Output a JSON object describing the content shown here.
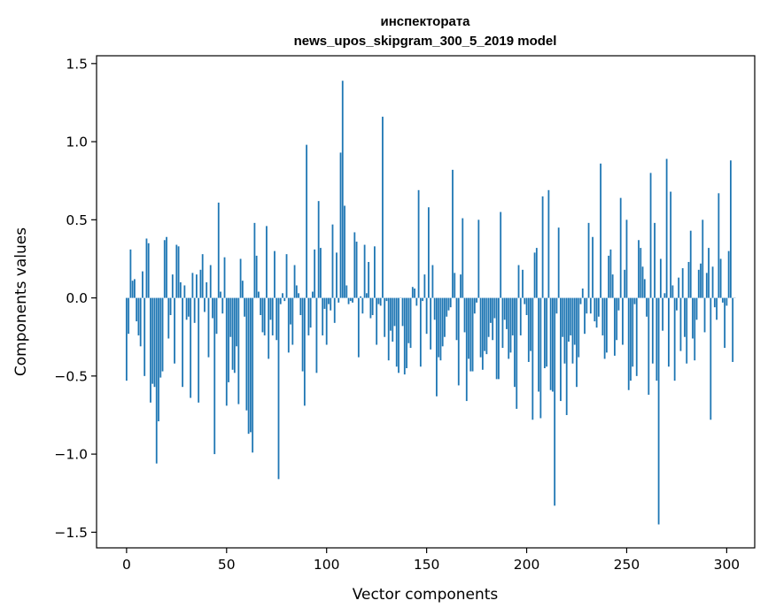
{
  "chart_data": {
    "type": "bar",
    "title": "инспектората",
    "subtitle": "news_upos_skipgram_300_5_2019 model",
    "xlabel": "Vector components",
    "ylabel": "Components values",
    "xlim": [
      -15,
      314
    ],
    "ylim": [
      -1.6,
      1.55
    ],
    "x_ticks": [
      0,
      50,
      100,
      150,
      200,
      250,
      300
    ],
    "y_ticks": [
      -1.5,
      -1.0,
      -0.5,
      0.0,
      0.5,
      1.0,
      1.5
    ],
    "x_tick_labels": [
      "0",
      "50",
      "100",
      "150",
      "200",
      "250",
      "300"
    ],
    "y_tick_labels": [
      "−1.5",
      "−1.0",
      "−0.5",
      "0.0",
      "0.5",
      "1.0",
      "1.5"
    ],
    "bar_color": "#1f77b4",
    "grid": false,
    "values": [
      -0.53,
      -0.23,
      0.31,
      0.11,
      0.12,
      -0.15,
      -0.24,
      -0.31,
      0.17,
      -0.5,
      0.38,
      0.35,
      -0.67,
      -0.55,
      -0.57,
      -1.06,
      -0.79,
      -0.51,
      -0.47,
      0.37,
      0.39,
      -0.26,
      -0.11,
      0.15,
      -0.42,
      0.34,
      0.33,
      0.1,
      -0.57,
      0.08,
      -0.14,
      -0.12,
      -0.64,
      0.16,
      -0.16,
      0.15,
      -0.67,
      0.18,
      0.28,
      -0.09,
      0.1,
      -0.38,
      0.21,
      -0.13,
      -1.0,
      -0.23,
      0.61,
      0.04,
      -0.1,
      0.26,
      -0.69,
      -0.54,
      -0.25,
      -0.46,
      -0.48,
      -0.31,
      -0.68,
      0.25,
      0.11,
      -0.12,
      -0.72,
      -0.87,
      -0.86,
      -0.99,
      0.48,
      0.27,
      0.04,
      -0.11,
      -0.22,
      -0.24,
      0.46,
      -0.39,
      -0.14,
      -0.24,
      0.3,
      -0.27,
      -1.16,
      -0.04,
      0.03,
      -0.02,
      0.28,
      -0.35,
      -0.17,
      -0.3,
      0.21,
      0.08,
      0.03,
      -0.11,
      -0.47,
      -0.69,
      0.98,
      -0.24,
      -0.19,
      0.04,
      0.31,
      -0.48,
      0.62,
      0.32,
      -0.24,
      -0.07,
      -0.3,
      -0.04,
      -0.08,
      0.47,
      -0.16,
      0.29,
      -0.03,
      0.93,
      1.39,
      0.59,
      0.08,
      -0.04,
      -0.02,
      -0.03,
      0.42,
      0.36,
      -0.38,
      0.01,
      -0.1,
      0.34,
      0.03,
      0.23,
      -0.13,
      -0.11,
      0.33,
      -0.3,
      -0.04,
      -0.05,
      1.16,
      -0.25,
      -0.02,
      -0.4,
      -0.21,
      -0.28,
      -0.18,
      -0.44,
      -0.48,
      0.0,
      -0.18,
      -0.49,
      -0.45,
      -0.29,
      -0.32,
      0.07,
      0.06,
      -0.05,
      0.69,
      -0.44,
      -0.02,
      0.15,
      -0.23,
      0.58,
      -0.33,
      0.21,
      -0.14,
      -0.63,
      -0.38,
      -0.4,
      -0.31,
      -0.25,
      -0.12,
      -0.08,
      -0.06,
      0.82,
      0.16,
      -0.27,
      -0.56,
      0.15,
      0.51,
      -0.22,
      -0.66,
      -0.39,
      -0.47,
      -0.47,
      -0.1,
      -0.03,
      0.5,
      -0.38,
      -0.46,
      -0.34,
      -0.36,
      -0.25,
      -0.16,
      -0.27,
      -0.13,
      -0.52,
      -0.52,
      0.55,
      -0.32,
      -0.14,
      -0.2,
      -0.39,
      -0.35,
      -0.24,
      -0.57,
      -0.71,
      0.21,
      -0.24,
      0.18,
      -0.04,
      -0.11,
      -0.41,
      -0.34,
      -0.78,
      0.29,
      0.32,
      -0.6,
      -0.77,
      0.65,
      -0.45,
      -0.44,
      0.69,
      -0.59,
      -0.6,
      -1.33,
      -0.1,
      0.45,
      -0.66,
      -0.25,
      -0.42,
      -0.75,
      -0.28,
      -0.24,
      -0.42,
      -0.3,
      -0.57,
      -0.38,
      -0.04,
      0.06,
      -0.23,
      -0.1,
      0.48,
      -0.1,
      0.39,
      -0.15,
      -0.19,
      -0.12,
      0.86,
      -0.24,
      -0.39,
      -0.35,
      0.27,
      0.31,
      0.15,
      -0.37,
      -0.27,
      -0.08,
      0.64,
      -0.3,
      0.18,
      0.5,
      -0.59,
      -0.53,
      -0.44,
      -0.04,
      -0.5,
      0.37,
      0.32,
      0.2,
      0.12,
      -0.12,
      -0.62,
      0.8,
      -0.42,
      0.48,
      -0.53,
      -1.45,
      0.25,
      -0.21,
      0.03,
      0.89,
      -0.44,
      0.68,
      0.08,
      -0.53,
      -0.08,
      0.13,
      -0.34,
      0.19,
      -0.25,
      -0.42,
      0.23,
      0.43,
      -0.26,
      -0.4,
      -0.14,
      0.18,
      0.22,
      0.5,
      -0.22,
      0.16,
      0.32,
      -0.78,
      0.2,
      -0.06,
      -0.14,
      0.67,
      0.25,
      -0.03,
      -0.32,
      -0.05,
      0.3,
      0.88,
      -0.41,
      0.0
    ]
  }
}
